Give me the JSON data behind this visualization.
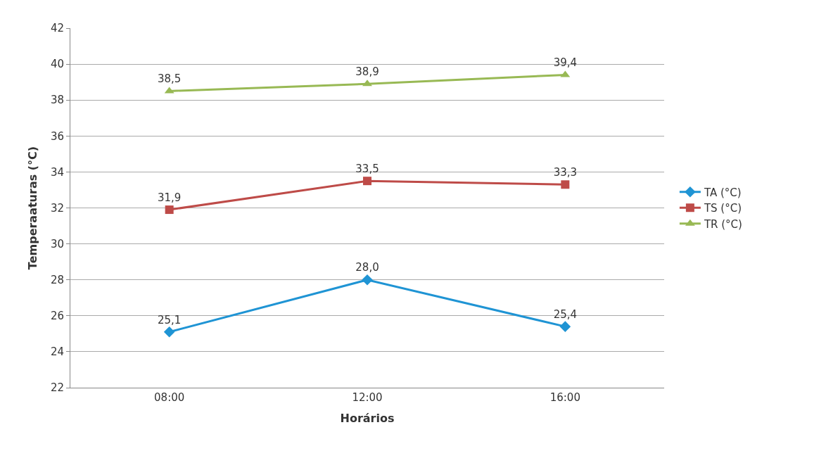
{
  "chart_data": {
    "type": "line",
    "xlabel": "Horários",
    "ylabel": "Temperaaturas (°C)",
    "categories": [
      "08:00",
      "12:00",
      "16:00"
    ],
    "series": [
      {
        "name": "TA (°C)",
        "color": "#1f94d4",
        "values": [
          25.1,
          28.0,
          25.4
        ],
        "value_labels": [
          "25,1",
          "28,0",
          "25,4"
        ],
        "marker": "diamond"
      },
      {
        "name": "TS (°C)",
        "color": "#be4b48",
        "values": [
          31.9,
          33.5,
          33.3
        ],
        "value_labels": [
          "31,9",
          "33,5",
          "33,3"
        ],
        "marker": "square"
      },
      {
        "name": "TR (°C)",
        "color": "#98b954",
        "values": [
          38.5,
          38.9,
          39.4
        ],
        "value_labels": [
          "38,5",
          "38,9",
          "39,4"
        ],
        "marker": "triangle"
      }
    ],
    "ylim": [
      22,
      42
    ],
    "yticks": [
      22,
      24,
      26,
      28,
      30,
      32,
      34,
      36,
      38,
      40,
      42
    ],
    "grid": "y",
    "legend": "right",
    "line_style": "solid"
  }
}
